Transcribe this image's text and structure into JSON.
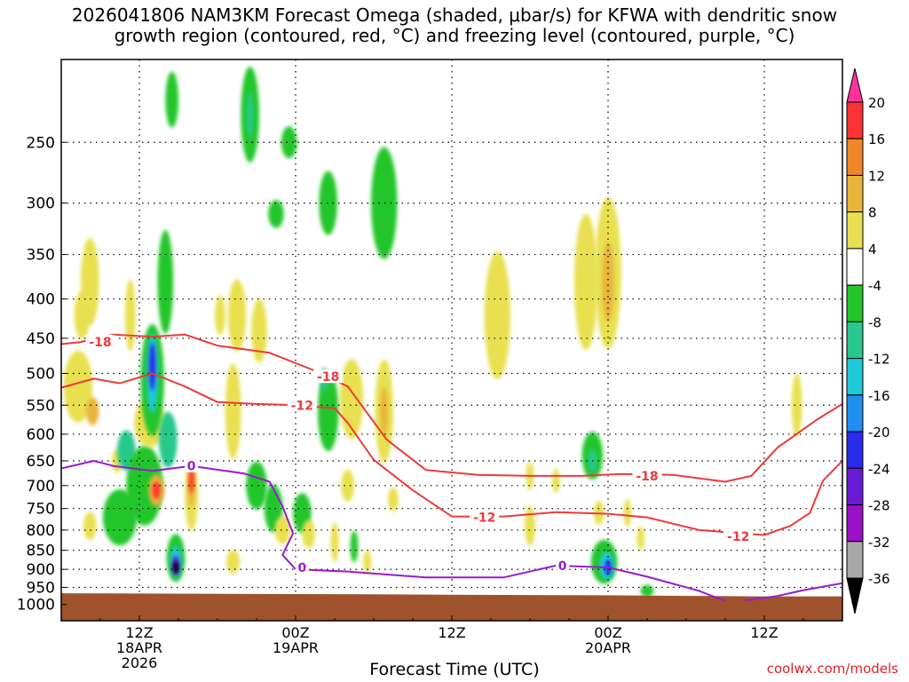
{
  "title": "2026041806 NAM3KM Forecast Omega (shaded, μbar/s) for KFWA with dendritic snow\ngrowth region (contoured, red, °C) and freezing level (contoured, purple, °C)",
  "credit": "coolwx.com/models",
  "chart_data": {
    "type": "heatmap",
    "title": "2026041806 NAM3KM Forecast Omega (shaded, μbar/s) for KFWA with dendritic snow growth region (contoured, red, °C) and freezing level (contoured, purple, °C)",
    "xlabel": "Forecast Time (UTC)",
    "ylabel": "",
    "x_axis": {
      "range_hours": [
        6,
        66
      ],
      "ticks": [
        {
          "hour": 12,
          "lines": [
            "12Z",
            "18APR",
            "2026"
          ]
        },
        {
          "hour": 24,
          "lines": [
            "00Z",
            "19APR"
          ]
        },
        {
          "hour": 36,
          "lines": [
            "12Z"
          ]
        },
        {
          "hour": 48,
          "lines": [
            "00Z",
            "20APR"
          ]
        },
        {
          "hour": 60,
          "lines": [
            "12Z"
          ]
        }
      ]
    },
    "y_axis": {
      "scale": "log-pressure",
      "unit": "hPa",
      "range": [
        1050,
        195
      ],
      "ticks": [
        250,
        300,
        350,
        400,
        450,
        500,
        550,
        600,
        650,
        700,
        750,
        800,
        850,
        900,
        950,
        1000
      ]
    },
    "grid": true,
    "colorbar": {
      "placement": "right",
      "labels": [
        "20",
        "16",
        "12",
        "8",
        "4",
        "-4",
        "-8",
        "-12",
        "-16",
        "-20",
        "-24",
        "-28",
        "-32",
        "-36"
      ],
      "bins": [
        {
          "range": [
            20,
            24
          ],
          "color": "#ff3399"
        },
        {
          "range": [
            16,
            20
          ],
          "color": "#ff3333"
        },
        {
          "range": [
            12,
            16
          ],
          "color": "#f08628"
        },
        {
          "range": [
            8,
            12
          ],
          "color": "#e8b43a"
        },
        {
          "range": [
            4,
            8
          ],
          "color": "#e8e050"
        },
        {
          "range": [
            -4,
            4
          ],
          "color": "#ffffff"
        },
        {
          "range": [
            -8,
            -4
          ],
          "color": "#22c62a"
        },
        {
          "range": [
            -12,
            -8
          ],
          "color": "#28c88c"
        },
        {
          "range": [
            -16,
            -12
          ],
          "color": "#1ecad8"
        },
        {
          "range": [
            -20,
            -16
          ],
          "color": "#2090f0"
        },
        {
          "range": [
            -24,
            -20
          ],
          "color": "#2b2bea"
        },
        {
          "range": [
            -28,
            -24
          ],
          "color": "#6a1bd6"
        },
        {
          "range": [
            -32,
            -28
          ],
          "color": "#9b10c8"
        },
        {
          "range": [
            -36,
            -32
          ],
          "color": "#a8a8a8"
        },
        {
          "range": [
            -40,
            -36
          ],
          "color": "#000000"
        }
      ]
    },
    "omega_cells": [
      {
        "t": 7.3,
        "p": 520,
        "w": 1.1,
        "h": 0.9,
        "v": 5
      },
      {
        "t": 7.6,
        "p": 420,
        "w": 0.6,
        "h": 0.6,
        "v": 5
      },
      {
        "t": 8.2,
        "p": 380,
        "w": 0.7,
        "h": 1.1,
        "v": 5
      },
      {
        "t": 8.4,
        "p": 560,
        "w": 0.5,
        "h": 0.35,
        "v": 9
      },
      {
        "t": 8.2,
        "p": 790,
        "w": 0.5,
        "h": 0.35,
        "v": 5
      },
      {
        "t": 10.3,
        "p": 650,
        "w": 0.4,
        "h": 0.3,
        "v": 5
      },
      {
        "t": 10.5,
        "p": 770,
        "w": 1.3,
        "h": 0.7,
        "v": -5
      },
      {
        "t": 11.0,
        "p": 630,
        "w": 0.7,
        "h": 0.5,
        "v": -9
      },
      {
        "t": 11.3,
        "p": 420,
        "w": 0.4,
        "h": 0.9,
        "v": 5
      },
      {
        "t": 12.4,
        "p": 700,
        "w": 1.4,
        "h": 1.0,
        "v": -6
      },
      {
        "t": 12.8,
        "p": 580,
        "w": 1.2,
        "h": 0.6,
        "v": 5
      },
      {
        "t": 13.0,
        "p": 510,
        "w": 0.9,
        "h": 1.4,
        "v": -7
      },
      {
        "t": 13.0,
        "p": 500,
        "w": 0.45,
        "h": 1.0,
        "v": -13
      },
      {
        "t": 13.0,
        "p": 490,
        "w": 0.25,
        "h": 0.6,
        "v": -22
      },
      {
        "t": 13.3,
        "p": 710,
        "w": 0.6,
        "h": 0.4,
        "v": 10
      },
      {
        "t": 13.3,
        "p": 710,
        "w": 0.3,
        "h": 0.22,
        "v": 18
      },
      {
        "t": 14.0,
        "p": 380,
        "w": 0.6,
        "h": 1.3,
        "v": -7
      },
      {
        "t": 14.2,
        "p": 610,
        "w": 0.7,
        "h": 0.7,
        "v": -9
      },
      {
        "t": 14.5,
        "p": 220,
        "w": 0.5,
        "h": 0.7,
        "v": -6
      },
      {
        "t": 14.8,
        "p": 870,
        "w": 0.7,
        "h": 0.6,
        "v": -7
      },
      {
        "t": 14.8,
        "p": 880,
        "w": 0.45,
        "h": 0.4,
        "v": -14
      },
      {
        "t": 14.8,
        "p": 890,
        "w": 0.28,
        "h": 0.25,
        "v": -26
      },
      {
        "t": 14.8,
        "p": 895,
        "w": 0.15,
        "h": 0.15,
        "v": -38
      },
      {
        "t": 16.0,
        "p": 720,
        "w": 0.5,
        "h": 0.9,
        "v": 6
      },
      {
        "t": 16.0,
        "p": 700,
        "w": 0.25,
        "h": 0.55,
        "v": 11
      },
      {
        "t": 16.0,
        "p": 690,
        "w": 0.12,
        "h": 0.3,
        "v": 18
      },
      {
        "t": 18.2,
        "p": 420,
        "w": 0.4,
        "h": 0.5,
        "v": 5
      },
      {
        "t": 19.2,
        "p": 560,
        "w": 0.6,
        "h": 1.2,
        "v": 6
      },
      {
        "t": 19.5,
        "p": 420,
        "w": 0.7,
        "h": 0.9,
        "v": 5
      },
      {
        "t": 19.2,
        "p": 880,
        "w": 0.5,
        "h": 0.3,
        "v": 5
      },
      {
        "t": 20.5,
        "p": 230,
        "w": 0.7,
        "h": 1.2,
        "v": -7
      },
      {
        "t": 20.5,
        "p": 230,
        "w": 0.25,
        "h": 0.6,
        "v": -11
      },
      {
        "t": 21.2,
        "p": 440,
        "w": 0.6,
        "h": 0.8,
        "v": 5
      },
      {
        "t": 21.0,
        "p": 700,
        "w": 0.8,
        "h": 0.6,
        "v": -6
      },
      {
        "t": 22.3,
        "p": 750,
        "w": 0.7,
        "h": 0.6,
        "v": -5
      },
      {
        "t": 22.5,
        "p": 310,
        "w": 0.6,
        "h": 0.35,
        "v": -5
      },
      {
        "t": 23.0,
        "p": 800,
        "w": 0.6,
        "h": 0.35,
        "v": 5
      },
      {
        "t": 23.5,
        "p": 250,
        "w": 0.6,
        "h": 0.4,
        "v": -6
      },
      {
        "t": 24.5,
        "p": 760,
        "w": 0.7,
        "h": 0.5,
        "v": -5
      },
      {
        "t": 25.0,
        "p": 810,
        "w": 0.5,
        "h": 0.35,
        "v": 5
      },
      {
        "t": 26.5,
        "p": 300,
        "w": 0.7,
        "h": 0.8,
        "v": -6
      },
      {
        "t": 26.5,
        "p": 560,
        "w": 0.8,
        "h": 1.0,
        "v": -6
      },
      {
        "t": 26.2,
        "p": 510,
        "w": 0.3,
        "h": 0.3,
        "v": -11
      },
      {
        "t": 28.3,
        "p": 540,
        "w": 0.9,
        "h": 1.0,
        "v": 5
      },
      {
        "t": 28.0,
        "p": 700,
        "w": 0.5,
        "h": 0.4,
        "v": 5
      },
      {
        "t": 27.0,
        "p": 830,
        "w": 0.3,
        "h": 0.5,
        "v": 5
      },
      {
        "t": 28.5,
        "p": 840,
        "w": 0.3,
        "h": 0.4,
        "v": -6
      },
      {
        "t": 29.5,
        "p": 880,
        "w": 0.3,
        "h": 0.3,
        "v": 5
      },
      {
        "t": 30.8,
        "p": 560,
        "w": 0.7,
        "h": 1.3,
        "v": 6
      },
      {
        "t": 30.8,
        "p": 560,
        "w": 0.3,
        "h": 0.6,
        "v": 10
      },
      {
        "t": 30.8,
        "p": 300,
        "w": 1.0,
        "h": 1.4,
        "v": -6
      },
      {
        "t": 31.5,
        "p": 730,
        "w": 0.4,
        "h": 0.3,
        "v": 5
      },
      {
        "t": 39.5,
        "p": 420,
        "w": 1.0,
        "h": 1.6,
        "v": 5
      },
      {
        "t": 42.0,
        "p": 680,
        "w": 0.3,
        "h": 0.35,
        "v": 5
      },
      {
        "t": 42.0,
        "p": 790,
        "w": 0.4,
        "h": 0.5,
        "v": 5
      },
      {
        "t": 44.0,
        "p": 690,
        "w": 0.3,
        "h": 0.3,
        "v": 5
      },
      {
        "t": 46.3,
        "p": 380,
        "w": 0.9,
        "h": 1.7,
        "v": 5
      },
      {
        "t": 46.8,
        "p": 640,
        "w": 0.8,
        "h": 0.6,
        "v": -7
      },
      {
        "t": 46.8,
        "p": 650,
        "w": 0.35,
        "h": 0.3,
        "v": -12
      },
      {
        "t": 47.3,
        "p": 760,
        "w": 0.4,
        "h": 0.3,
        "v": 5
      },
      {
        "t": 48.0,
        "p": 370,
        "w": 1.0,
        "h": 1.9,
        "v": 6
      },
      {
        "t": 48.0,
        "p": 380,
        "w": 0.45,
        "h": 1.0,
        "v": 10
      },
      {
        "t": 47.7,
        "p": 880,
        "w": 1.0,
        "h": 0.55,
        "v": -7
      },
      {
        "t": 47.9,
        "p": 890,
        "w": 0.55,
        "h": 0.35,
        "v": -14
      },
      {
        "t": 48.0,
        "p": 895,
        "w": 0.25,
        "h": 0.2,
        "v": -23
      },
      {
        "t": 49.5,
        "p": 760,
        "w": 0.3,
        "h": 0.35,
        "v": 5
      },
      {
        "t": 50.5,
        "p": 820,
        "w": 0.3,
        "h": 0.3,
        "v": 5
      },
      {
        "t": 51.0,
        "p": 960,
        "w": 0.5,
        "h": 0.15,
        "v": -6
      },
      {
        "t": 62.5,
        "p": 550,
        "w": 0.4,
        "h": 0.8,
        "v": 5
      }
    ],
    "contours": [
      {
        "name": "-18",
        "color": "#ee3a3a",
        "labels": [
          {
            "t": 9.0,
            "p": 455
          },
          {
            "t": 26.5,
            "p": 505
          },
          {
            "t": 51.0,
            "p": 680
          }
        ],
        "segments": [
          [
            [
              6,
              458
            ],
            [
              7.5,
              455
            ],
            [
              10,
              445
            ],
            [
              13,
              448
            ],
            [
              15.5,
              445
            ],
            [
              18,
              460
            ],
            [
              22,
              470
            ],
            [
              26,
              500
            ],
            [
              28,
              520
            ],
            [
              31,
              610
            ],
            [
              34,
              668
            ],
            [
              38,
              678
            ],
            [
              42,
              680
            ],
            [
              46,
              680
            ],
            [
              49,
              676
            ],
            [
              53,
              678
            ],
            [
              57,
              692
            ],
            [
              59,
              680
            ],
            [
              61,
              625
            ],
            [
              64,
              575
            ],
            [
              66,
              548
            ]
          ]
        ]
      },
      {
        "name": "-12",
        "color": "#ee3a3a",
        "labels": [
          {
            "t": 24.5,
            "p": 550
          },
          {
            "t": 38.5,
            "p": 770
          },
          {
            "t": 58.0,
            "p": 815
          }
        ],
        "segments": [
          [
            [
              6,
              522
            ],
            [
              8.5,
              508
            ],
            [
              10.5,
              515
            ],
            [
              13,
              500
            ],
            [
              15.5,
              520
            ],
            [
              18,
              545
            ],
            [
              21,
              548
            ],
            [
              24,
              550
            ],
            [
              27,
              555
            ],
            [
              28,
              580
            ],
            [
              30,
              648
            ],
            [
              33,
              710
            ],
            [
              36,
              768
            ],
            [
              40,
              768
            ],
            [
              44,
              758
            ],
            [
              48,
              762
            ],
            [
              51,
              770
            ],
            [
              55,
              800
            ],
            [
              60,
              812
            ],
            [
              62,
              790
            ],
            [
              63.5,
              760
            ],
            [
              64.5,
              690
            ],
            [
              66,
              650
            ]
          ]
        ]
      },
      {
        "name": "0",
        "color": "#9a1acf",
        "labels": [
          {
            "t": 16.0,
            "p": 660
          },
          {
            "t": 24.5,
            "p": 895
          },
          {
            "t": 44.5,
            "p": 890
          }
        ],
        "segments": [
          [
            [
              6,
              665
            ],
            [
              8.5,
              650
            ],
            [
              10,
              660
            ],
            [
              13,
              670
            ],
            [
              16,
              660
            ],
            [
              20,
              675
            ],
            [
              22,
              692
            ],
            [
              23,
              745
            ],
            [
              23.8,
              808
            ],
            [
              23,
              862
            ],
            [
              24,
              900
            ],
            [
              28,
              906
            ],
            [
              34,
              922
            ],
            [
              40,
              922
            ],
            [
              44,
              890
            ],
            [
              48,
              895
            ],
            [
              51,
              920
            ],
            [
              55,
              960
            ],
            [
              57,
              990
            ]
          ],
          [
            [
              58.5,
              988
            ],
            [
              61,
              975
            ],
            [
              63,
              958
            ],
            [
              66,
              938
            ]
          ]
        ]
      }
    ]
  }
}
